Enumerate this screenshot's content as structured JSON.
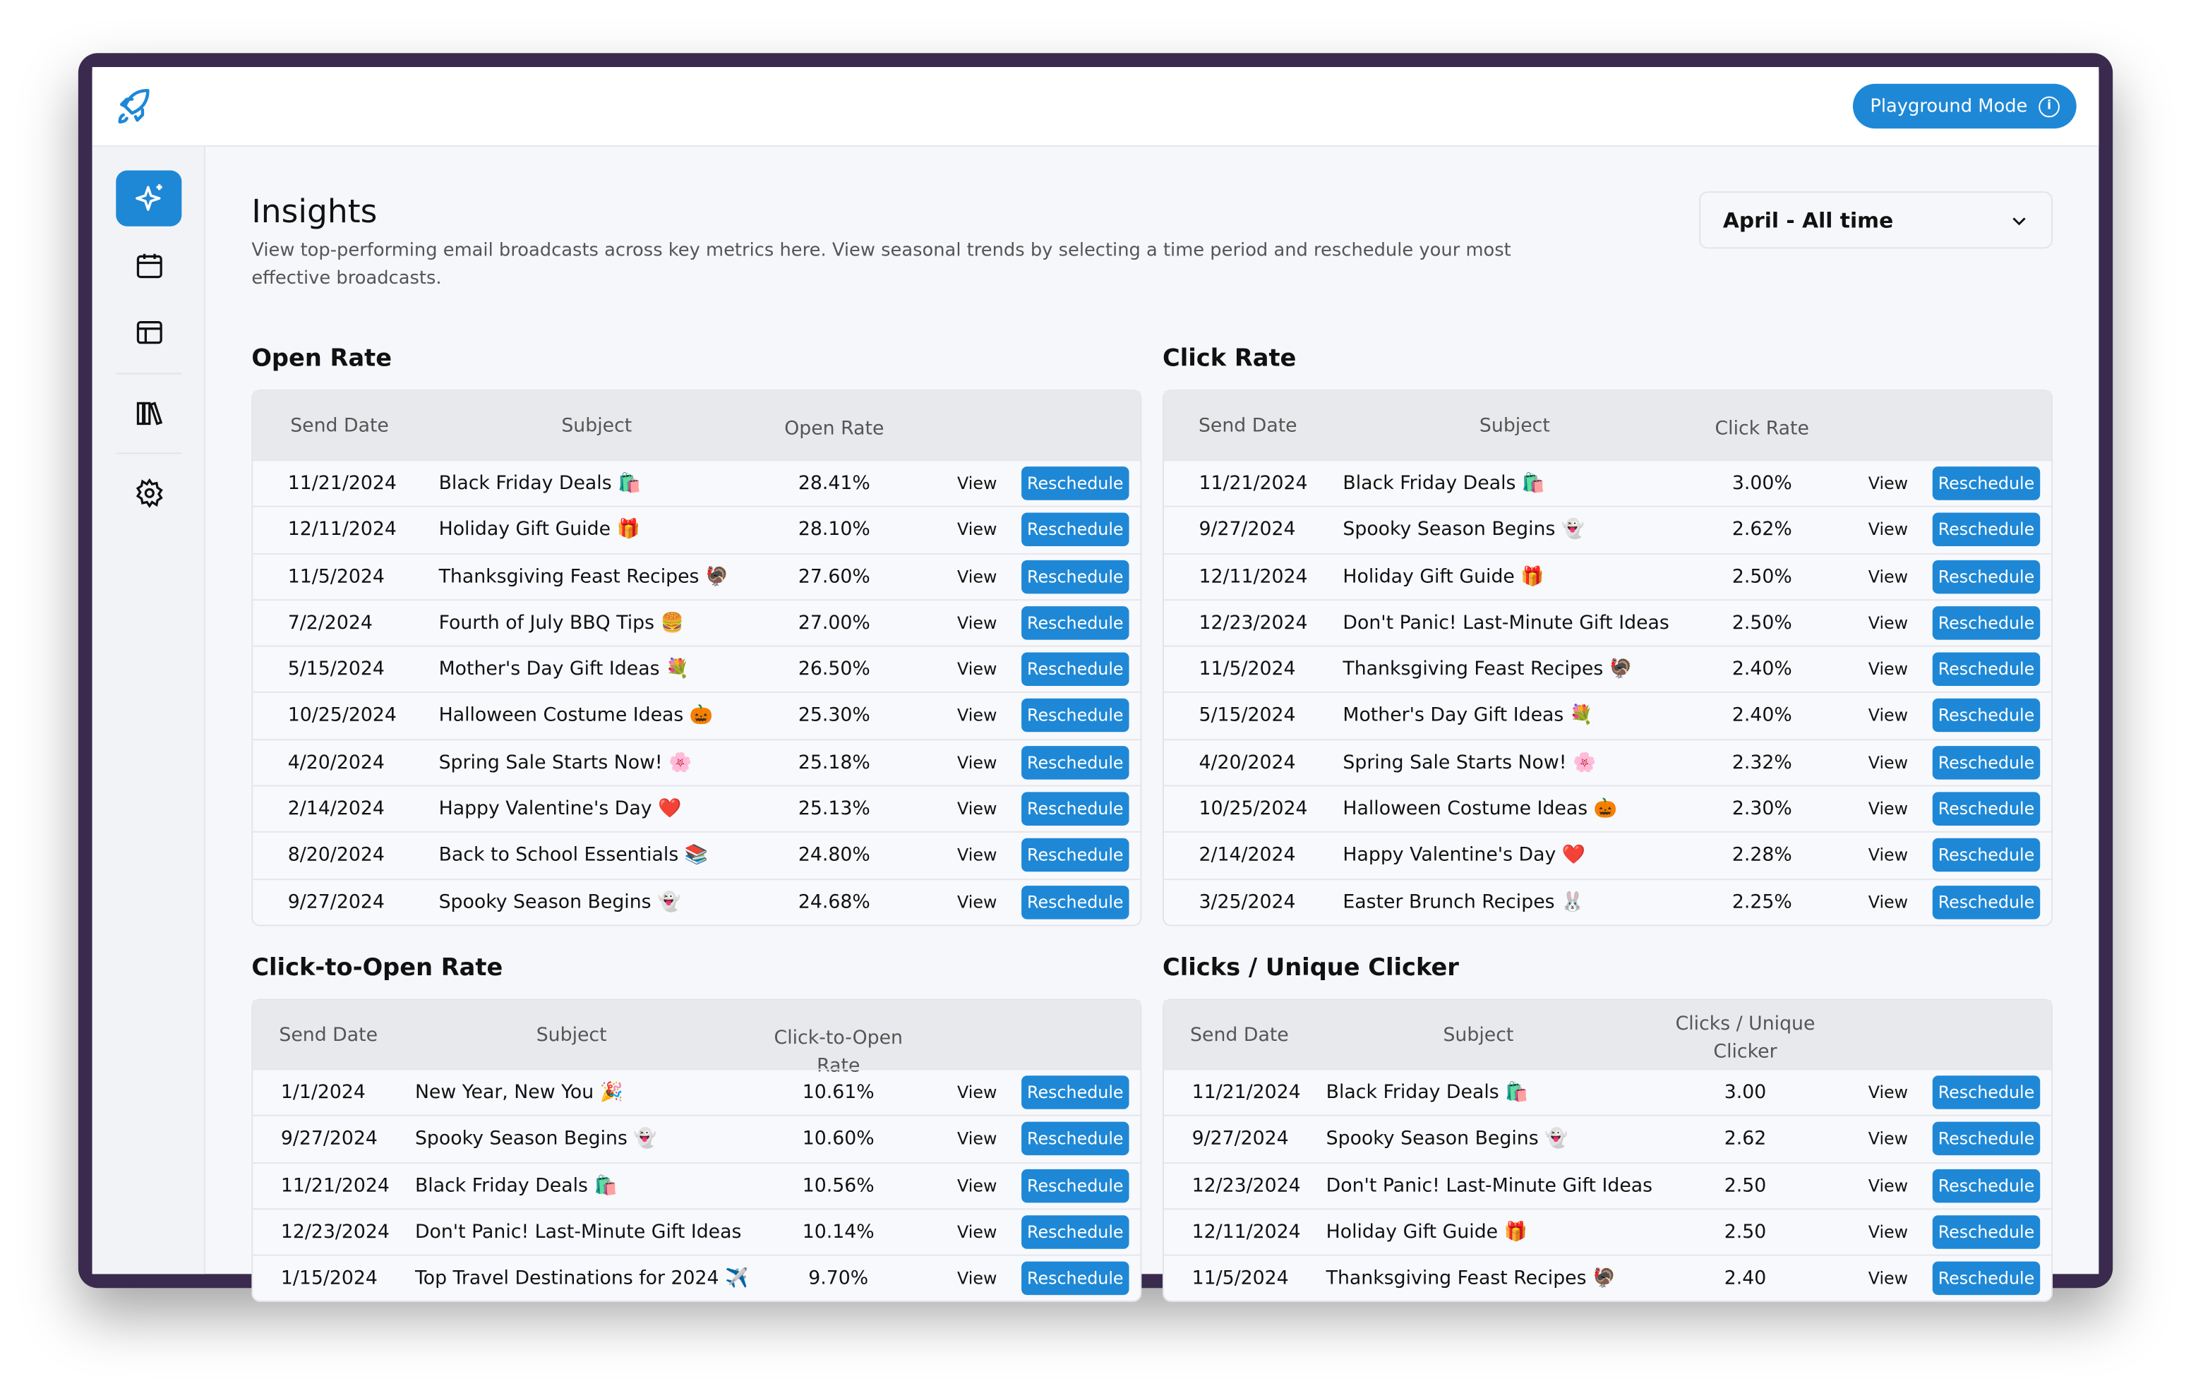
{
  "header": {
    "playground_label": "Playground Mode",
    "logo_icon": "rocket-icon",
    "info_icon": "info-icon"
  },
  "sidebar": {
    "items": [
      {
        "icon": "sparkles-icon",
        "active": true
      },
      {
        "icon": "calendar-icon"
      },
      {
        "icon": "layout-icon"
      },
      {
        "icon": "library-icon"
      },
      {
        "icon": "gear-icon"
      }
    ]
  },
  "page": {
    "title": "Insights",
    "description": "View top-performing email broadcasts across key metrics here. View seasonal trends by selecting a time period and reschedule your most effective broadcasts.",
    "period": "April - All time"
  },
  "accent": "#1e88d6",
  "view_label": "View",
  "reschedule_label": "Reschedule",
  "tables": [
    {
      "title": "Open Rate",
      "columns": [
        "Send Date",
        "Subject",
        "Open Rate"
      ],
      "rows": [
        [
          "11/21/2024",
          "Black Friday Deals 🛍️",
          "28.41%"
        ],
        [
          "12/11/2024",
          "Holiday Gift Guide 🎁",
          "28.10%"
        ],
        [
          "11/5/2024",
          "Thanksgiving Feast Recipes 🦃",
          "27.60%"
        ],
        [
          "7/2/2024",
          "Fourth of July BBQ Tips 🍔",
          "27.00%"
        ],
        [
          "5/15/2024",
          "Mother's Day Gift Ideas 💐",
          "26.50%"
        ],
        [
          "10/25/2024",
          "Halloween Costume Ideas 🎃",
          "25.30%"
        ],
        [
          "4/20/2024",
          "Spring Sale Starts Now! 🌸",
          "25.18%"
        ],
        [
          "2/14/2024",
          "Happy Valentine's Day ❤️",
          "25.13%"
        ],
        [
          "8/20/2024",
          "Back to School Essentials 📚",
          "24.80%"
        ],
        [
          "9/27/2024",
          "Spooky Season Begins 👻",
          "24.68%"
        ]
      ]
    },
    {
      "title": "Click Rate",
      "columns": [
        "Send Date",
        "Subject",
        "Click Rate"
      ],
      "rows": [
        [
          "11/21/2024",
          "Black Friday Deals 🛍️",
          "3.00%"
        ],
        [
          "9/27/2024",
          "Spooky Season Begins 👻",
          "2.62%"
        ],
        [
          "12/11/2024",
          "Holiday Gift Guide 🎁",
          "2.50%"
        ],
        [
          "12/23/2024",
          "Don't Panic! Last-Minute Gift Ideas",
          "2.50%"
        ],
        [
          "11/5/2024",
          "Thanksgiving Feast Recipes 🦃",
          "2.40%"
        ],
        [
          "5/15/2024",
          "Mother's Day Gift Ideas 💐",
          "2.40%"
        ],
        [
          "4/20/2024",
          "Spring Sale Starts Now! 🌸",
          "2.32%"
        ],
        [
          "10/25/2024",
          "Halloween Costume Ideas 🎃",
          "2.30%"
        ],
        [
          "2/14/2024",
          "Happy Valentine's Day ❤️",
          "2.28%"
        ],
        [
          "3/25/2024",
          "Easter Brunch Recipes 🐰",
          "2.25%"
        ]
      ]
    },
    {
      "title": "Click-to-Open Rate",
      "columns": [
        "Send Date",
        "Subject",
        "Click-to-Open Rate"
      ],
      "rows": [
        [
          "1/1/2024",
          "New Year, New You 🎉",
          "10.61%"
        ],
        [
          "9/27/2024",
          "Spooky Season Begins 👻",
          "10.60%"
        ],
        [
          "11/21/2024",
          "Black Friday Deals 🛍️",
          "10.56%"
        ],
        [
          "12/23/2024",
          "Don't Panic! Last-Minute Gift Ideas",
          "10.14%"
        ],
        [
          "1/15/2024",
          "Top Travel Destinations for 2024 ✈️",
          "9.70%"
        ]
      ]
    },
    {
      "title": "Clicks / Unique Clicker",
      "columns": [
        "Send Date",
        "Subject",
        "Clicks / Unique Clicker"
      ],
      "rows": [
        [
          "11/21/2024",
          "Black Friday Deals 🛍️",
          "3.00"
        ],
        [
          "9/27/2024",
          "Spooky Season Begins 👻",
          "2.62"
        ],
        [
          "12/23/2024",
          "Don't Panic! Last-Minute Gift Ideas",
          "2.50"
        ],
        [
          "12/11/2024",
          "Holiday Gift Guide 🎁",
          "2.50"
        ],
        [
          "11/5/2024",
          "Thanksgiving Feast Recipes 🦃",
          "2.40"
        ]
      ]
    }
  ]
}
